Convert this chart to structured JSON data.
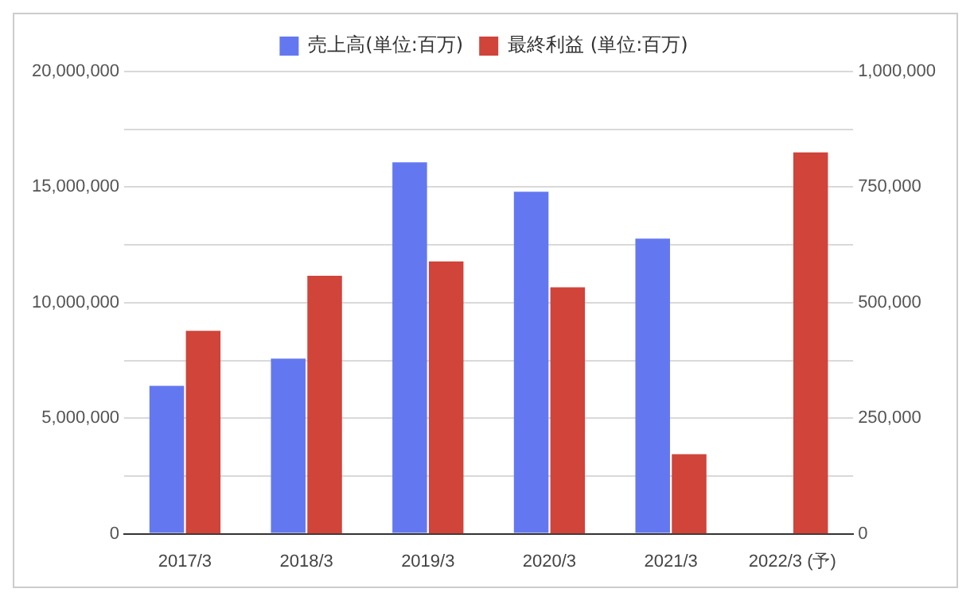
{
  "chart_data": {
    "type": "bar",
    "categories": [
      "2017/3",
      "2018/3",
      "2019/3",
      "2020/3",
      "2021/3",
      "2022/3 (予)"
    ],
    "series": [
      {
        "name": "売上高(単位:百万)",
        "color": "#6378f0",
        "values": [
          6400000,
          7580000,
          16070000,
          14800000,
          12770000,
          null
        ]
      },
      {
        "name": "最終利益 (単位:百万)",
        "color": "#d0443a",
        "axis": "y2",
        "values": [
          439000,
          558000,
          589000,
          533000,
          172000,
          825000
        ]
      }
    ],
    "ylim": [
      0,
      20000000
    ],
    "yticks": [
      {
        "value": 0,
        "label": "0"
      },
      {
        "value": 2500000,
        "label": null
      },
      {
        "value": 5000000,
        "label": "5,000,000"
      },
      {
        "value": 7500000,
        "label": null
      },
      {
        "value": 10000000,
        "label": "10,000,000"
      },
      {
        "value": 12500000,
        "label": null
      },
      {
        "value": 15000000,
        "label": "15,000,000"
      },
      {
        "value": 17500000,
        "label": null
      },
      {
        "value": 20000000,
        "label": "20,000,000"
      }
    ],
    "y2lim": [
      0,
      1000000
    ],
    "y2ticks": [
      {
        "value": 0,
        "label": "0"
      },
      {
        "value": 250000,
        "label": "250,000"
      },
      {
        "value": 500000,
        "label": "500,000"
      },
      {
        "value": 750000,
        "label": "750,000"
      },
      {
        "value": 1000000,
        "label": "1,000,000"
      }
    ],
    "grid": "y",
    "legend": "top"
  }
}
